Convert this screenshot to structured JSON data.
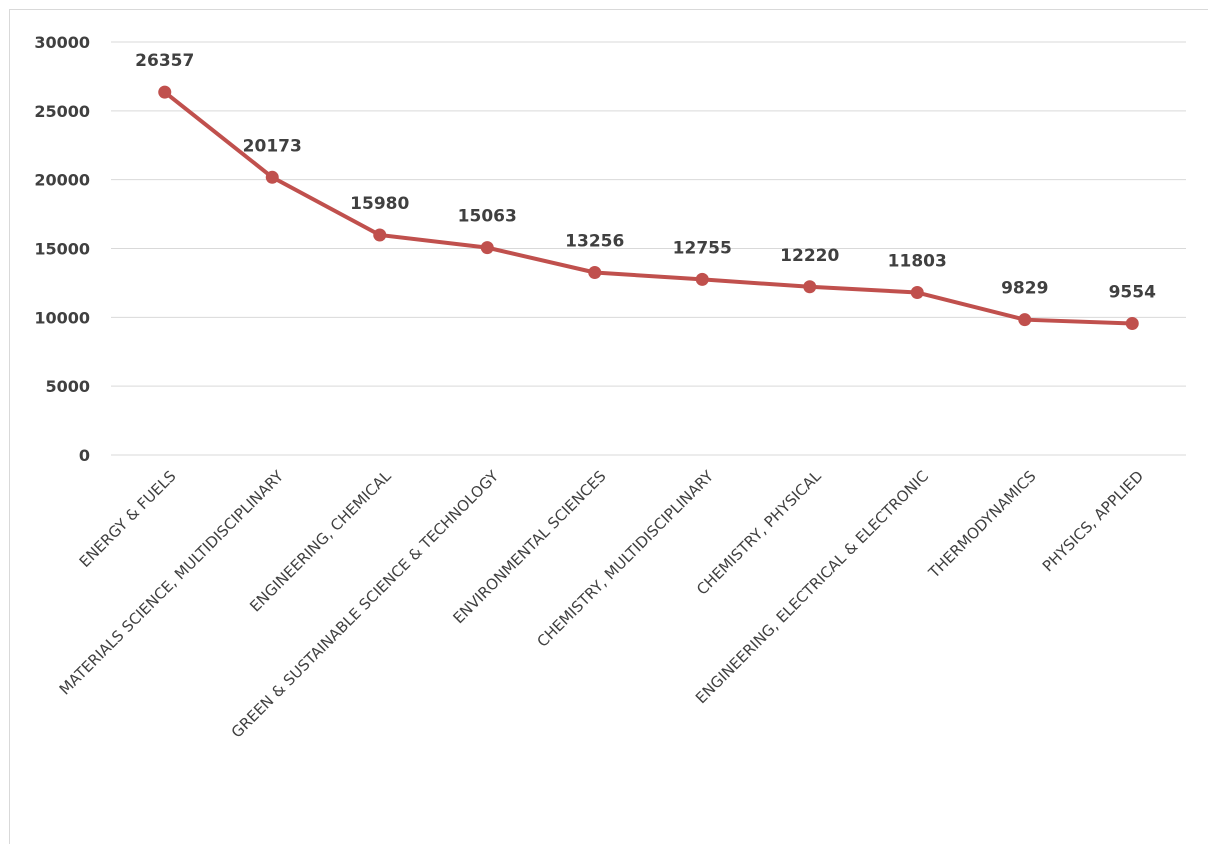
{
  "chart_data": {
    "type": "line",
    "categories": [
      "ENERGY & FUELS",
      "MATERIALS SCIENCE, MULTIDISCIPLINARY",
      "ENGINEERING, CHEMICAL",
      "GREEN & SUSTAINABLE SCIENCE & TECHNOLOGY",
      "ENVIRONMENTAL SCIENCES",
      "CHEMISTRY, MULTIDISCIPLINARY",
      "CHEMISTRY, PHYSICAL",
      "ENGINEERING, ELECTRICAL & ELECTRONIC",
      "THERMODYNAMICS",
      "PHYSICS, APPLIED"
    ],
    "series": [
      {
        "values": [
          26357,
          20173,
          15980,
          15063,
          13256,
          12755,
          12220,
          11803,
          9829,
          9554
        ],
        "color": "#c0504d"
      }
    ],
    "data_labels": [
      "26357",
      "20173",
      "15980",
      "15063",
      "13256",
      "12755",
      "12220",
      "11803",
      "9829",
      "9554"
    ],
    "ylim": [
      0,
      30000
    ],
    "yticks": [
      "0",
      "5000",
      "10000",
      "15000",
      "20000",
      "25000",
      "30000"
    ],
    "ytick_values": [
      0,
      5000,
      10000,
      15000,
      20000,
      25000,
      30000
    ],
    "grid": true,
    "gridline_color": "#d9d9d9",
    "title": "",
    "xlabel": "",
    "ylabel": ""
  }
}
